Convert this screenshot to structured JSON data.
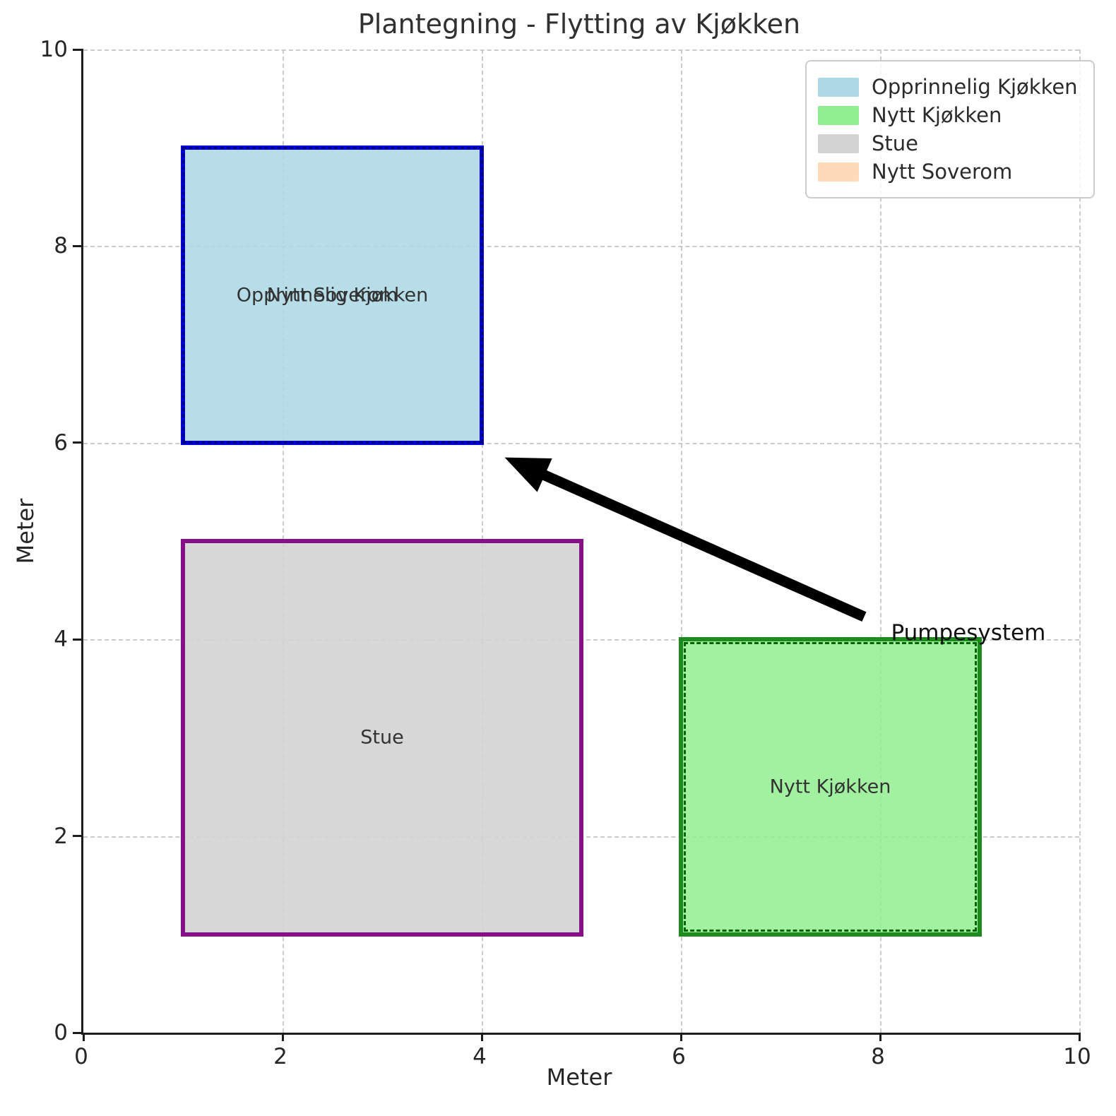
{
  "title": "Plantegning - Flytting av Kjøkken",
  "axes": {
    "xlabel": "Meter",
    "ylabel": "Meter",
    "xlim": [
      0,
      10
    ],
    "ylim": [
      0,
      10
    ],
    "ticks": [
      0,
      2,
      4,
      6,
      8,
      10
    ]
  },
  "legend": {
    "position": "upper right",
    "items": [
      {
        "label": "Opprinnelig Kjøkken",
        "color": "#ADD8E6"
      },
      {
        "label": "Nytt Kjøkken",
        "color": "#90EE90"
      },
      {
        "label": "Stue",
        "color": "#D3D3D3"
      },
      {
        "label": "Nytt Soverom",
        "color": "#FFDAB9"
      }
    ]
  },
  "chart_data": {
    "type": "floorplan-rectangles",
    "title": "Plantegning - Flytting av Kjøkken",
    "xlabel": "Meter",
    "ylabel": "Meter",
    "xlim": [
      0,
      10
    ],
    "ylim": [
      0,
      10
    ],
    "grid": true,
    "rooms": [
      {
        "label": "Stue",
        "x": 1,
        "y": 1,
        "width": 4,
        "height": 4,
        "fill": "#D3D3D3",
        "fill_alpha": 0.9,
        "edge": "#861088",
        "edge_style": "solid",
        "overlay_edge": null
      },
      {
        "label": "Nytt Kjøkken",
        "x": 6,
        "y": 1,
        "width": 3,
        "height": 3,
        "fill": "#90EE90",
        "fill_alpha": 0.85,
        "edge": "#1F8B1F",
        "edge_style": "solid",
        "overlay_edge": "#006400"
      },
      {
        "label": "Opprinnelig Kjøkken",
        "x": 1,
        "y": 6,
        "width": 3,
        "height": 3,
        "fill": "#ADD8E6",
        "fill_alpha": 0.88,
        "edge": "#0000DD",
        "edge_style": "solid",
        "overlay_edge": null
      },
      {
        "label": "Nytt Soverom",
        "x": 1,
        "y": 6,
        "width": 3,
        "height": 3,
        "fill": "none",
        "fill_alpha": 0,
        "edge": "#000080",
        "edge_style": "dashed",
        "overlay_edge": null
      }
    ],
    "annotation": {
      "text": "Pumpesystem",
      "text_x": 8.11,
      "text_y": 3.94,
      "arrow_tail": [
        7.84,
        4.23
      ],
      "arrow_tip": [
        4.23,
        5.85
      ],
      "arrow_color": "#000000"
    }
  }
}
